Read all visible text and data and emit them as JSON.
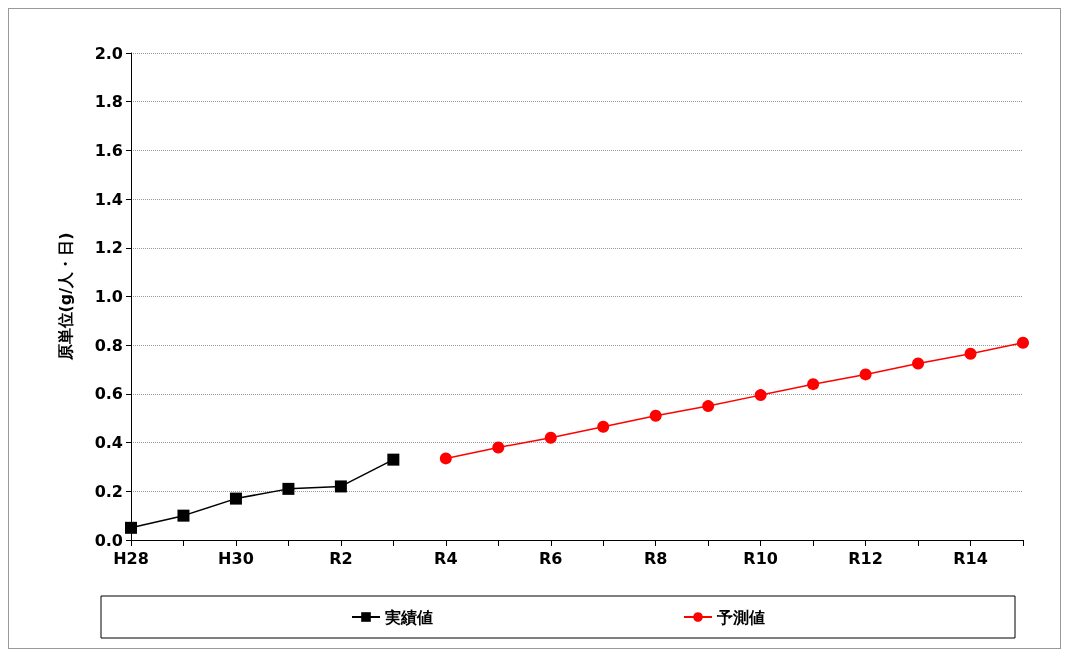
{
  "chart_data": {
    "type": "line",
    "ylabel": "原単位(g/人・日)",
    "categories": [
      "H28",
      null,
      "H30",
      null,
      "R2",
      null,
      "R4",
      null,
      "R6",
      null,
      "R8",
      null,
      "R10",
      null,
      "R12",
      null,
      "R14",
      null
    ],
    "series": [
      {
        "name": "実績値",
        "color": "#000000",
        "marker": "square",
        "values": [
          0.05,
          0.1,
          0.17,
          0.21,
          0.22,
          0.33,
          null,
          null,
          null,
          null,
          null,
          null,
          null,
          null,
          null,
          null,
          null,
          null
        ]
      },
      {
        "name": "予測値",
        "color": "#ff0000",
        "marker": "circle",
        "values": [
          null,
          null,
          null,
          null,
          null,
          null,
          0.335,
          0.38,
          0.42,
          0.465,
          0.51,
          0.55,
          0.595,
          0.64,
          0.68,
          0.725,
          0.765,
          0.81
        ]
      }
    ],
    "ylim": [
      0,
      2
    ],
    "yticks": [
      {
        "value": 0,
        "label": "0.0"
      },
      0.2,
      0.4,
      0.6,
      0.8,
      {
        "value": 1,
        "label": "1.0"
      },
      1.2,
      1.4,
      1.6,
      1.8,
      {
        "value": 2,
        "label": "2.0"
      }
    ],
    "grid": "y",
    "legend": "bottom",
    "line_style": "solid"
  }
}
